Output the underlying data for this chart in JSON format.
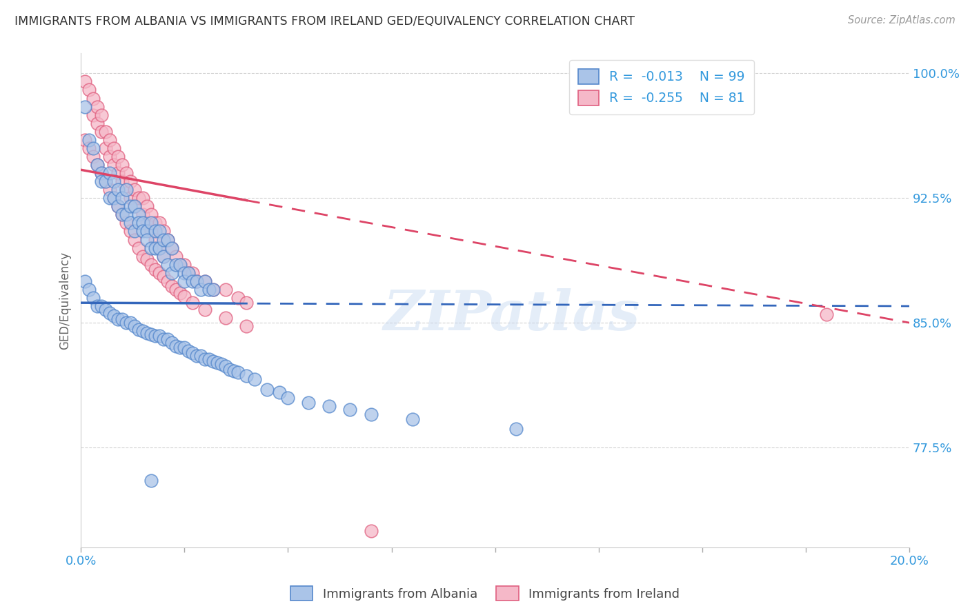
{
  "title": "IMMIGRANTS FROM ALBANIA VS IMMIGRANTS FROM IRELAND GED/EQUIVALENCY CORRELATION CHART",
  "source": "Source: ZipAtlas.com",
  "ylabel": "GED/Equivalency",
  "xlim": [
    0.0,
    0.2
  ],
  "ylim": [
    0.715,
    1.012
  ],
  "yticks": [
    0.775,
    0.85,
    0.925,
    1.0
  ],
  "ytick_labels": [
    "77.5%",
    "85.0%",
    "92.5%",
    "100.0%"
  ],
  "xticks": [
    0.0,
    0.025,
    0.05,
    0.075,
    0.1,
    0.125,
    0.15,
    0.175,
    0.2
  ],
  "xtick_labels": [
    "0.0%",
    "",
    "",
    "",
    "",
    "",
    "",
    "",
    "20.0%"
  ],
  "color_albania": "#aac4e8",
  "color_ireland": "#f5b8c8",
  "color_albania_edge": "#5588cc",
  "color_ireland_edge": "#e06080",
  "color_trendline_albania": "#3366bb",
  "color_trendline_ireland": "#dd4466",
  "color_axis_labels": "#3399dd",
  "color_title": "#333333",
  "watermark": "ZIPatlas",
  "albania_x": [
    0.001,
    0.002,
    0.003,
    0.004,
    0.005,
    0.005,
    0.006,
    0.007,
    0.007,
    0.008,
    0.008,
    0.009,
    0.009,
    0.01,
    0.01,
    0.011,
    0.011,
    0.012,
    0.012,
    0.013,
    0.013,
    0.014,
    0.014,
    0.015,
    0.015,
    0.016,
    0.016,
    0.017,
    0.017,
    0.018,
    0.018,
    0.019,
    0.019,
    0.02,
    0.02,
    0.021,
    0.021,
    0.022,
    0.022,
    0.023,
    0.024,
    0.025,
    0.025,
    0.026,
    0.027,
    0.028,
    0.029,
    0.03,
    0.031,
    0.032,
    0.001,
    0.002,
    0.003,
    0.004,
    0.005,
    0.006,
    0.007,
    0.008,
    0.009,
    0.01,
    0.011,
    0.012,
    0.013,
    0.014,
    0.015,
    0.016,
    0.017,
    0.018,
    0.019,
    0.02,
    0.021,
    0.022,
    0.023,
    0.024,
    0.025,
    0.026,
    0.027,
    0.028,
    0.029,
    0.03,
    0.031,
    0.032,
    0.033,
    0.034,
    0.035,
    0.036,
    0.037,
    0.038,
    0.04,
    0.042,
    0.045,
    0.048,
    0.05,
    0.055,
    0.06,
    0.065,
    0.07,
    0.08,
    0.105,
    0.017
  ],
  "albania_y": [
    0.98,
    0.96,
    0.955,
    0.945,
    0.94,
    0.935,
    0.935,
    0.94,
    0.925,
    0.935,
    0.925,
    0.93,
    0.92,
    0.925,
    0.915,
    0.93,
    0.915,
    0.92,
    0.91,
    0.92,
    0.905,
    0.915,
    0.91,
    0.91,
    0.905,
    0.905,
    0.9,
    0.91,
    0.895,
    0.905,
    0.895,
    0.905,
    0.895,
    0.9,
    0.89,
    0.9,
    0.885,
    0.895,
    0.88,
    0.885,
    0.885,
    0.88,
    0.875,
    0.88,
    0.875,
    0.875,
    0.87,
    0.875,
    0.87,
    0.87,
    0.875,
    0.87,
    0.865,
    0.86,
    0.86,
    0.858,
    0.856,
    0.854,
    0.852,
    0.852,
    0.85,
    0.85,
    0.848,
    0.846,
    0.845,
    0.844,
    0.843,
    0.842,
    0.842,
    0.84,
    0.84,
    0.838,
    0.836,
    0.835,
    0.835,
    0.833,
    0.832,
    0.83,
    0.83,
    0.828,
    0.828,
    0.827,
    0.826,
    0.825,
    0.824,
    0.822,
    0.821,
    0.82,
    0.818,
    0.816,
    0.81,
    0.808,
    0.805,
    0.802,
    0.8,
    0.798,
    0.795,
    0.792,
    0.786,
    0.755
  ],
  "ireland_x": [
    0.001,
    0.002,
    0.003,
    0.003,
    0.004,
    0.004,
    0.005,
    0.005,
    0.006,
    0.006,
    0.007,
    0.007,
    0.008,
    0.008,
    0.009,
    0.009,
    0.01,
    0.01,
    0.011,
    0.011,
    0.012,
    0.012,
    0.013,
    0.013,
    0.014,
    0.015,
    0.015,
    0.016,
    0.016,
    0.017,
    0.017,
    0.018,
    0.018,
    0.019,
    0.019,
    0.02,
    0.02,
    0.021,
    0.022,
    0.023,
    0.024,
    0.025,
    0.026,
    0.027,
    0.028,
    0.03,
    0.032,
    0.035,
    0.038,
    0.04,
    0.001,
    0.002,
    0.003,
    0.004,
    0.005,
    0.006,
    0.007,
    0.008,
    0.009,
    0.01,
    0.011,
    0.012,
    0.013,
    0.014,
    0.015,
    0.016,
    0.017,
    0.018,
    0.019,
    0.02,
    0.021,
    0.022,
    0.023,
    0.024,
    0.025,
    0.027,
    0.03,
    0.035,
    0.04,
    0.18,
    0.07
  ],
  "ireland_y": [
    0.995,
    0.99,
    0.985,
    0.975,
    0.98,
    0.97,
    0.975,
    0.965,
    0.965,
    0.955,
    0.96,
    0.95,
    0.955,
    0.945,
    0.95,
    0.94,
    0.945,
    0.935,
    0.94,
    0.93,
    0.935,
    0.925,
    0.93,
    0.92,
    0.925,
    0.925,
    0.915,
    0.92,
    0.91,
    0.915,
    0.905,
    0.91,
    0.9,
    0.91,
    0.895,
    0.905,
    0.89,
    0.9,
    0.895,
    0.89,
    0.885,
    0.885,
    0.88,
    0.88,
    0.875,
    0.875,
    0.87,
    0.87,
    0.865,
    0.862,
    0.96,
    0.955,
    0.95,
    0.945,
    0.94,
    0.935,
    0.93,
    0.925,
    0.92,
    0.915,
    0.91,
    0.905,
    0.9,
    0.895,
    0.89,
    0.888,
    0.885,
    0.882,
    0.88,
    0.878,
    0.875,
    0.872,
    0.87,
    0.868,
    0.866,
    0.862,
    0.858,
    0.853,
    0.848,
    0.855,
    0.725
  ]
}
